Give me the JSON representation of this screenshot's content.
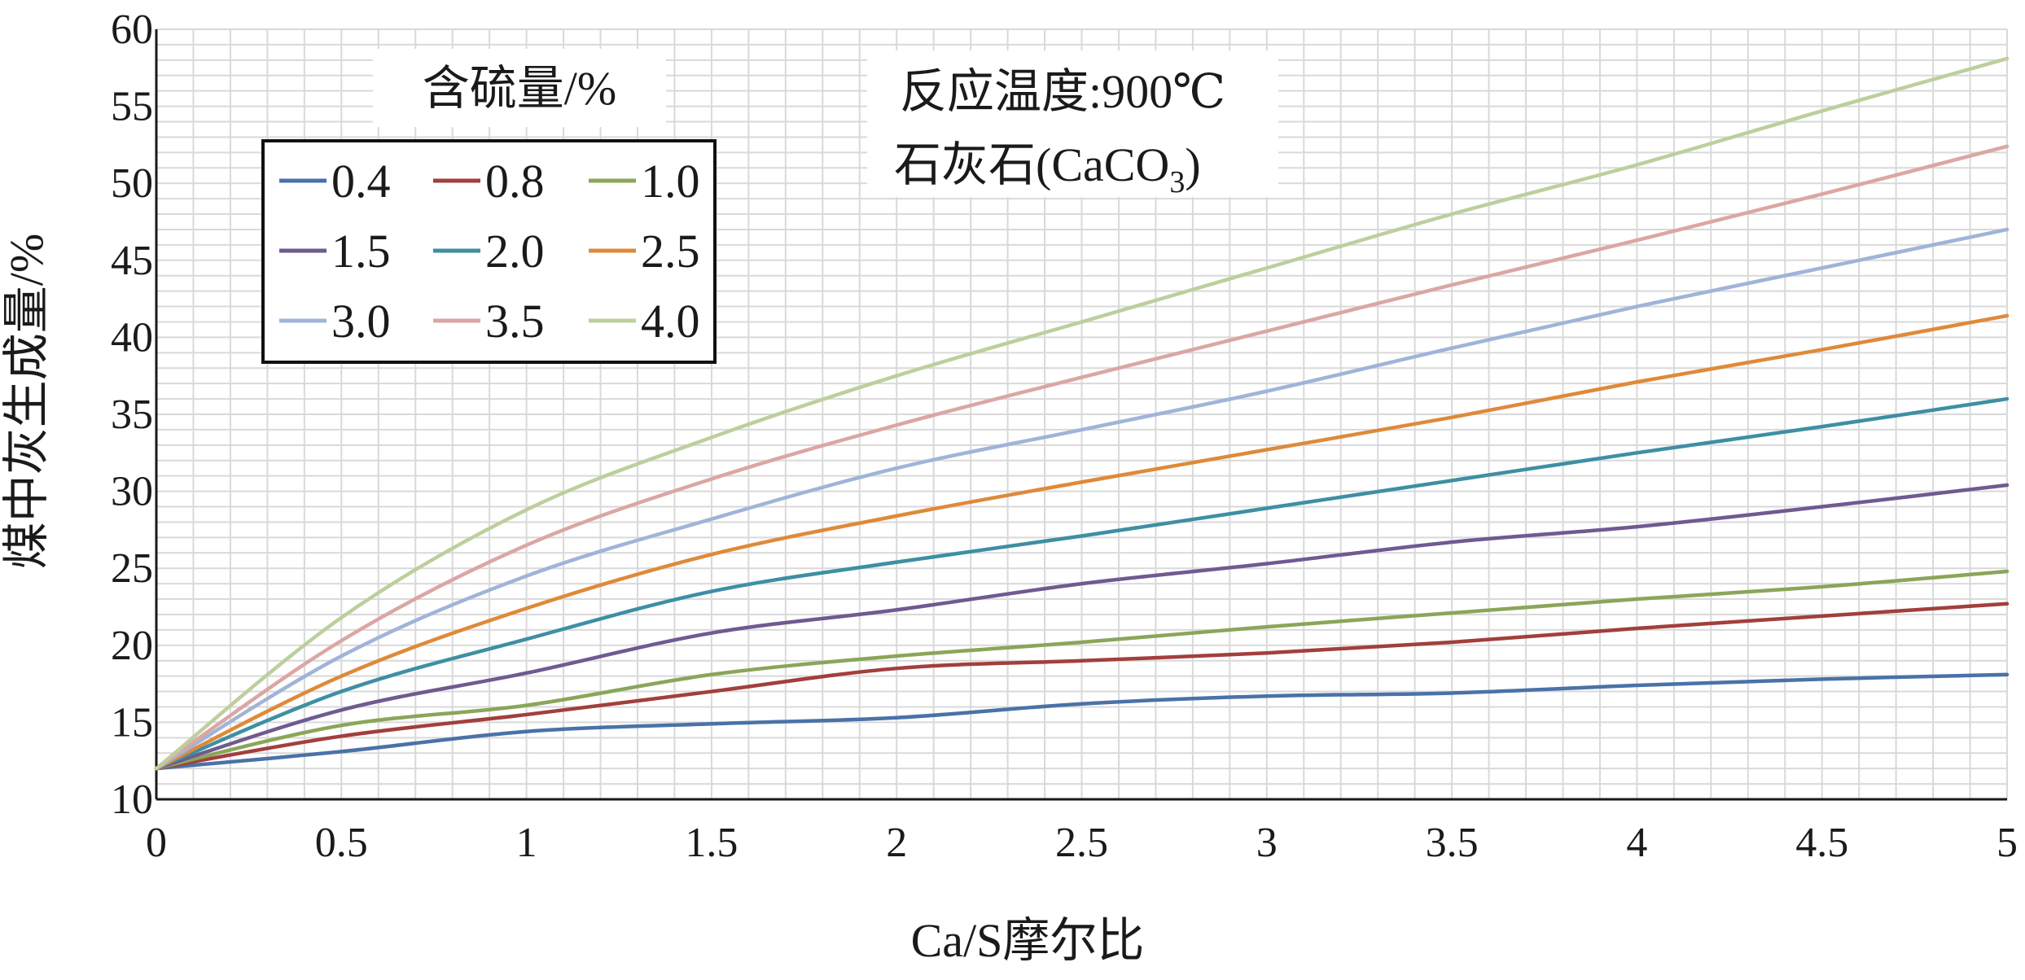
{
  "chart_data": {
    "type": "line",
    "xlabel": "Ca/S摩尔比",
    "ylabel": "煤中灰生成量/%",
    "xlim": [
      0,
      5
    ],
    "ylim": [
      10,
      60
    ],
    "xticks": [
      0,
      0.5,
      1,
      1.5,
      2,
      2.5,
      3,
      3.5,
      4,
      4.5,
      5
    ],
    "xtick_labels": [
      "0",
      "0.5",
      "1",
      "1.5",
      "2",
      "2.5",
      "3",
      "3.5",
      "4",
      "4.5",
      "5"
    ],
    "yticks": [
      10,
      15,
      20,
      25,
      30,
      35,
      40,
      45,
      50,
      55,
      60
    ],
    "ytick_labels": [
      "10",
      "15",
      "20",
      "25",
      "30",
      "35",
      "40",
      "45",
      "50",
      "55",
      "60"
    ],
    "grid": true,
    "legend_title": "含硫量/%",
    "legend_position": "top-left",
    "annotation_line1": "反应温度:900℃",
    "annotation_line2_main": "石灰石(CaCO",
    "annotation_line2_sub": "3",
    "annotation_line2_end": ")",
    "x": [
      0,
      0.5,
      1,
      1.5,
      2,
      2.5,
      3,
      3.5,
      4,
      4.5,
      5
    ],
    "series": [
      {
        "name": "0.4",
        "color": "#4a72a8",
        "values": [
          12.0,
          13.1,
          14.4,
          14.9,
          15.3,
          16.2,
          16.7,
          16.9,
          17.4,
          17.8,
          18.1
        ]
      },
      {
        "name": "0.8",
        "color": "#a23f3d",
        "values": [
          12.0,
          14.1,
          15.5,
          17.0,
          18.5,
          19.0,
          19.5,
          20.2,
          21.1,
          21.9,
          22.7
        ]
      },
      {
        "name": "1.0",
        "color": "#8aa658",
        "values": [
          12.0,
          14.8,
          16.1,
          18.1,
          19.3,
          20.2,
          21.2,
          22.1,
          23.0,
          23.8,
          24.8
        ]
      },
      {
        "name": "1.5",
        "color": "#6f5a91",
        "values": [
          12.0,
          15.8,
          18.2,
          20.8,
          22.3,
          24.0,
          25.3,
          26.7,
          27.7,
          29.0,
          30.4
        ]
      },
      {
        "name": "2.0",
        "color": "#3e8fa3",
        "values": [
          12.0,
          17.0,
          20.4,
          23.5,
          25.4,
          27.1,
          28.9,
          30.7,
          32.5,
          34.2,
          36.0
        ]
      },
      {
        "name": "2.5",
        "color": "#de8a3a",
        "values": [
          12.0,
          18.0,
          22.4,
          25.9,
          28.4,
          30.6,
          32.7,
          34.8,
          37.1,
          39.2,
          41.4
        ]
      },
      {
        "name": "3.0",
        "color": "#9fb4d8",
        "values": [
          12.0,
          19.3,
          24.5,
          28.2,
          31.5,
          34.0,
          36.5,
          39.3,
          42.0,
          44.5,
          47.0
        ]
      },
      {
        "name": "3.5",
        "color": "#dba6a4",
        "values": [
          12.0,
          20.3,
          26.5,
          30.8,
          34.3,
          37.4,
          40.4,
          43.4,
          46.3,
          49.3,
          52.4
        ]
      },
      {
        "name": "4.0",
        "color": "#bccf9d",
        "values": [
          12.0,
          21.8,
          28.8,
          33.5,
          37.5,
          41.0,
          44.5,
          48.0,
          51.2,
          54.7,
          58.1
        ]
      }
    ]
  }
}
